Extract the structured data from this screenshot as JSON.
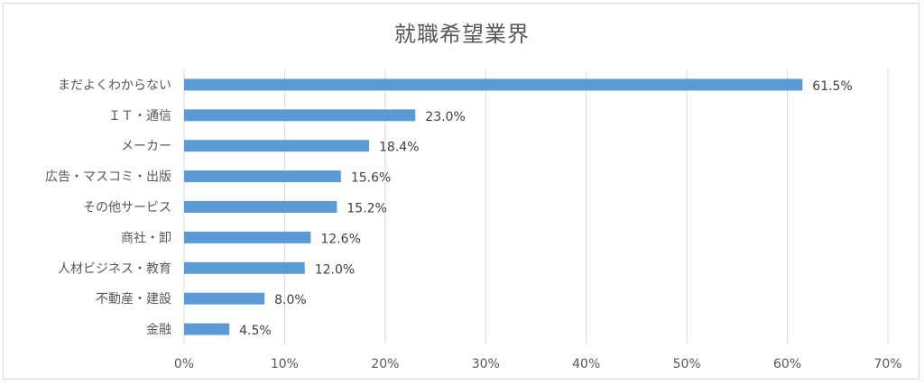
{
  "chart_data": {
    "type": "bar",
    "orientation": "horizontal",
    "title": "就職希望業界",
    "categories": [
      "まだよくわからない",
      "ＩＴ・通信",
      "メーカー",
      "広告・マスコミ・出版",
      "その他サービス",
      "商社・卸",
      "人材ビジネス・教育",
      "不動産・建設",
      "金融"
    ],
    "values": [
      61.5,
      23.0,
      18.4,
      15.6,
      15.2,
      12.6,
      12.0,
      8.0,
      4.5
    ],
    "data_labels": [
      "61.5%",
      "23.0%",
      "18.4%",
      "15.6%",
      "15.2%",
      "12.6%",
      "12.0%",
      "8.0%",
      "4.5%"
    ],
    "x_ticks": [
      "0%",
      "10%",
      "20%",
      "30%",
      "40%",
      "50%",
      "60%",
      "70%"
    ],
    "xlim": [
      0,
      70
    ],
    "grid": true,
    "bar_color": "#5b9bd5"
  }
}
